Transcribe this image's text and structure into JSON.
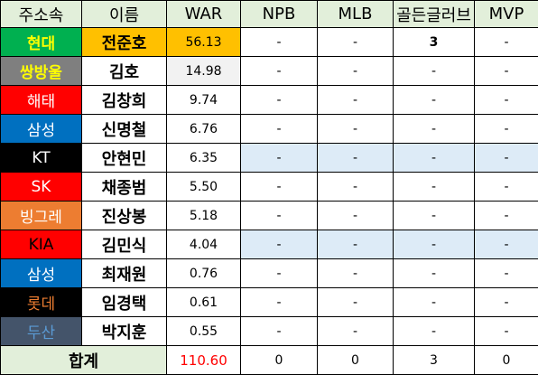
{
  "headers": [
    "주소속",
    "이름",
    "WAR",
    "NPB",
    "MLB",
    "골든글러브",
    "MVP"
  ],
  "rows": [
    {
      "team": "현대",
      "team_bg": "#00b050",
      "team_fg": "#ffff00",
      "team_bold": true,
      "name": "전준호",
      "name_bg": "#ffc000",
      "war": "56.13",
      "war_bg": "#ffc000",
      "npb": "-",
      "mlb": "-",
      "gg": "3",
      "mvp": "-",
      "stat_bg": "#ffffff"
    },
    {
      "team": "쌍방울",
      "team_bg": "#7f7f7f",
      "team_fg": "#ffff00",
      "team_bold": true,
      "name": "김호",
      "name_bg": "#ffffff",
      "war": "14.98",
      "war_bg": "#f2f2f2",
      "npb": "-",
      "mlb": "-",
      "gg": "-",
      "mvp": "-",
      "stat_bg": "#ffffff"
    },
    {
      "team": "해태",
      "team_bg": "#ff0000",
      "team_fg": "#ffffff",
      "team_bold": false,
      "name": "김창희",
      "name_bg": "#ffffff",
      "war": "9.74",
      "war_bg": "#ffffff",
      "npb": "-",
      "mlb": "-",
      "gg": "-",
      "mvp": "-",
      "stat_bg": "#ffffff"
    },
    {
      "team": "삼성",
      "team_bg": "#0070c0",
      "team_fg": "#ffffff",
      "team_bold": false,
      "name": "신명철",
      "name_bg": "#ffffff",
      "war": "6.76",
      "war_bg": "#ffffff",
      "npb": "-",
      "mlb": "-",
      "gg": "-",
      "mvp": "-",
      "stat_bg": "#ffffff"
    },
    {
      "team": "KT",
      "team_bg": "#000000",
      "team_fg": "#ffffff",
      "team_bold": false,
      "name": "안현민",
      "name_bg": "#ffffff",
      "war": "6.35",
      "war_bg": "#ffffff",
      "npb": "-",
      "mlb": "-",
      "gg": "-",
      "mvp": "-",
      "stat_bg": "#ddebf7"
    },
    {
      "team": "SK",
      "team_bg": "#ff0000",
      "team_fg": "#ffffff",
      "team_bold": false,
      "name": "채종범",
      "name_bg": "#ffffff",
      "war": "5.50",
      "war_bg": "#ffffff",
      "npb": "-",
      "mlb": "-",
      "gg": "-",
      "mvp": "-",
      "stat_bg": "#ffffff"
    },
    {
      "team": "빙그레",
      "team_bg": "#ed7d31",
      "team_fg": "#ffffff",
      "team_bold": false,
      "name": "진상봉",
      "name_bg": "#ffffff",
      "war": "5.18",
      "war_bg": "#ffffff",
      "npb": "-",
      "mlb": "-",
      "gg": "-",
      "mvp": "-",
      "stat_bg": "#ffffff"
    },
    {
      "team": "KIA",
      "team_bg": "#ff0000",
      "team_fg": "#000000",
      "team_bold": false,
      "name": "김민식",
      "name_bg": "#ffffff",
      "war": "4.04",
      "war_bg": "#ffffff",
      "npb": "-",
      "mlb": "-",
      "gg": "-",
      "mvp": "-",
      "stat_bg": "#ddebf7"
    },
    {
      "team": "삼성",
      "team_bg": "#0070c0",
      "team_fg": "#ffffff",
      "team_bold": false,
      "name": "최재원",
      "name_bg": "#ffffff",
      "war": "0.76",
      "war_bg": "#ffffff",
      "npb": "-",
      "mlb": "-",
      "gg": "-",
      "mvp": "-",
      "stat_bg": "#ffffff"
    },
    {
      "team": "롯데",
      "team_bg": "#000000",
      "team_fg": "#ed7d31",
      "team_bold": false,
      "name": "임경택",
      "name_bg": "#ffffff",
      "war": "0.61",
      "war_bg": "#ffffff",
      "npb": "-",
      "mlb": "-",
      "gg": "-",
      "mvp": "-",
      "stat_bg": "#ffffff"
    },
    {
      "team": "두산",
      "team_bg": "#44546a",
      "team_fg": "#5b9bd5",
      "team_bold": false,
      "name": "박지훈",
      "name_bg": "#ffffff",
      "war": "0.55",
      "war_bg": "#ffffff",
      "npb": "-",
      "mlb": "-",
      "gg": "-",
      "mvp": "-",
      "stat_bg": "#ffffff"
    }
  ],
  "total": {
    "label": "합계",
    "war": "110.60",
    "npb": "0",
    "mlb": "0",
    "gg": "3",
    "mvp": "0"
  },
  "colors": {
    "header_bg": "#e2efda",
    "grid": "#000000",
    "total_war_text": "#ff0000"
  }
}
